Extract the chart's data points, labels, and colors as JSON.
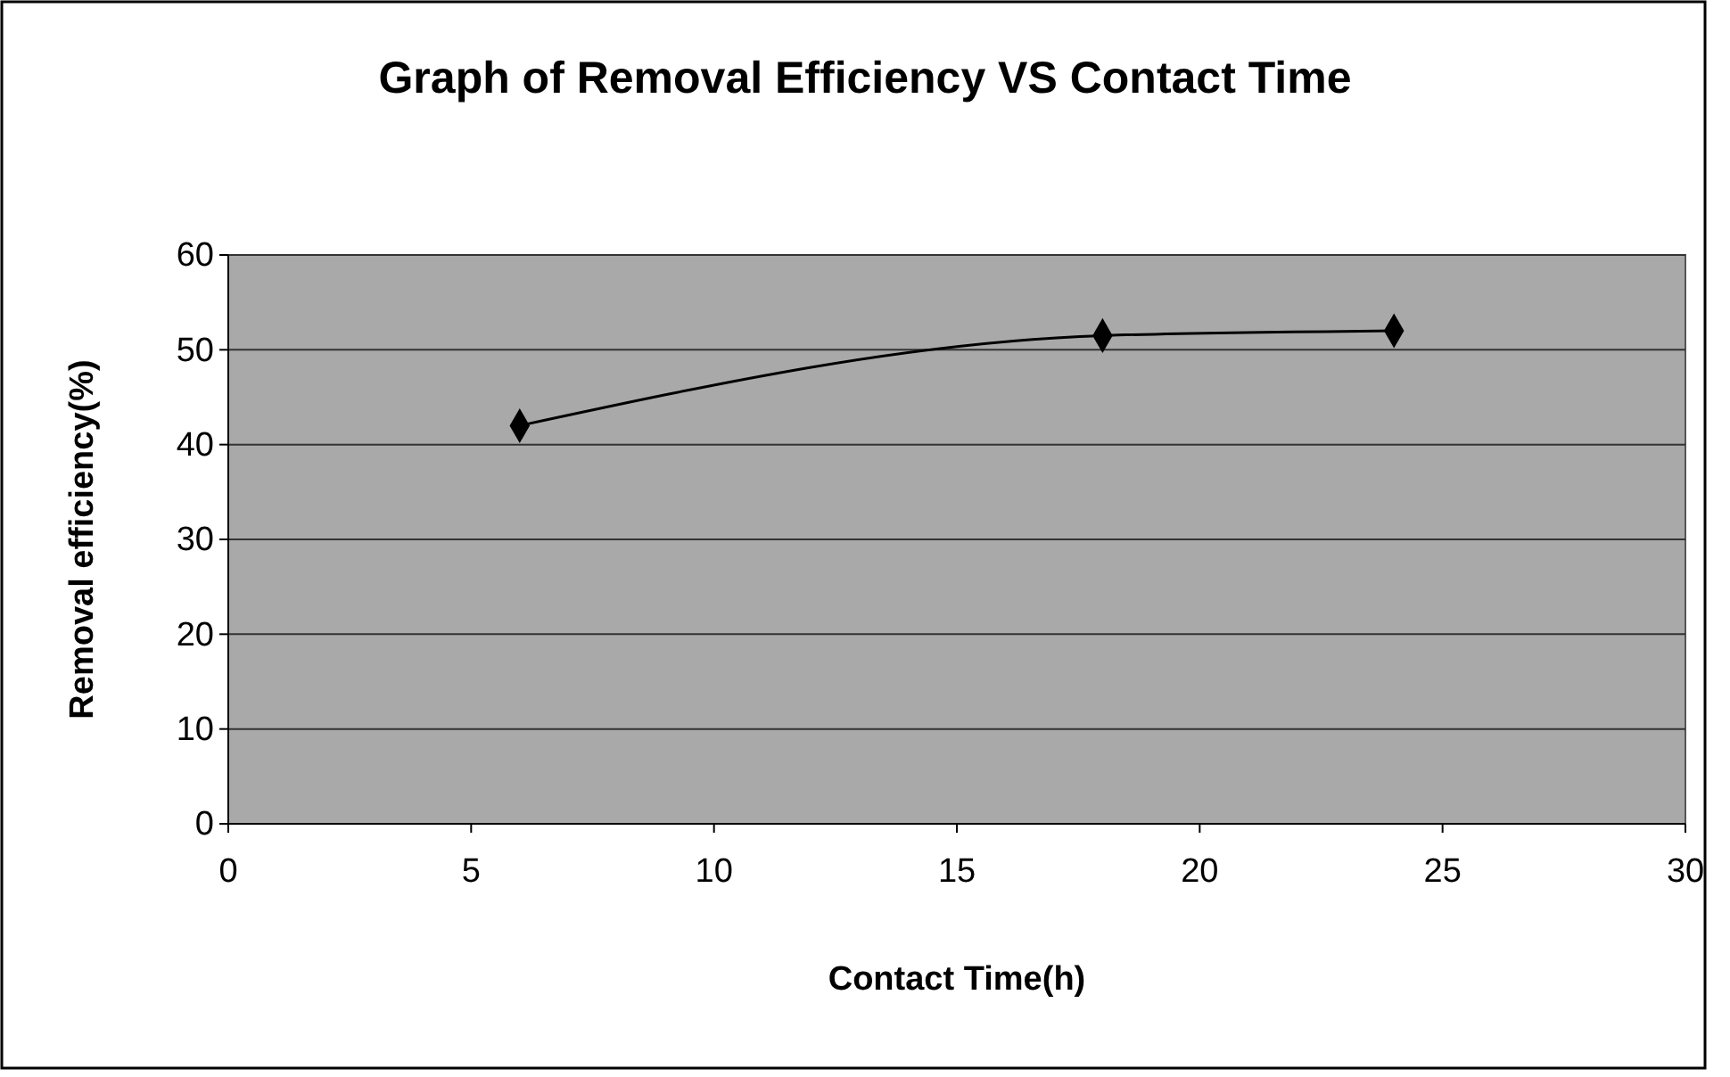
{
  "chart_data": {
    "type": "line",
    "title": "Graph of Removal Efficiency VS Contact Time",
    "xlabel": "Contact Time(h)",
    "ylabel": "Removal efficiency(%)",
    "x": [
      6,
      18,
      24
    ],
    "series": [
      {
        "color": "#000000",
        "values": [
          42,
          51.5,
          52
        ]
      }
    ],
    "xlim": [
      0,
      30
    ],
    "xticks": [
      0,
      5,
      10,
      15,
      20,
      25,
      30
    ],
    "ylim": [
      0,
      60
    ],
    "yticks": [
      0,
      10,
      20,
      30,
      40,
      50,
      60
    ],
    "grid": "y",
    "marker": "diamond",
    "legend": false
  }
}
